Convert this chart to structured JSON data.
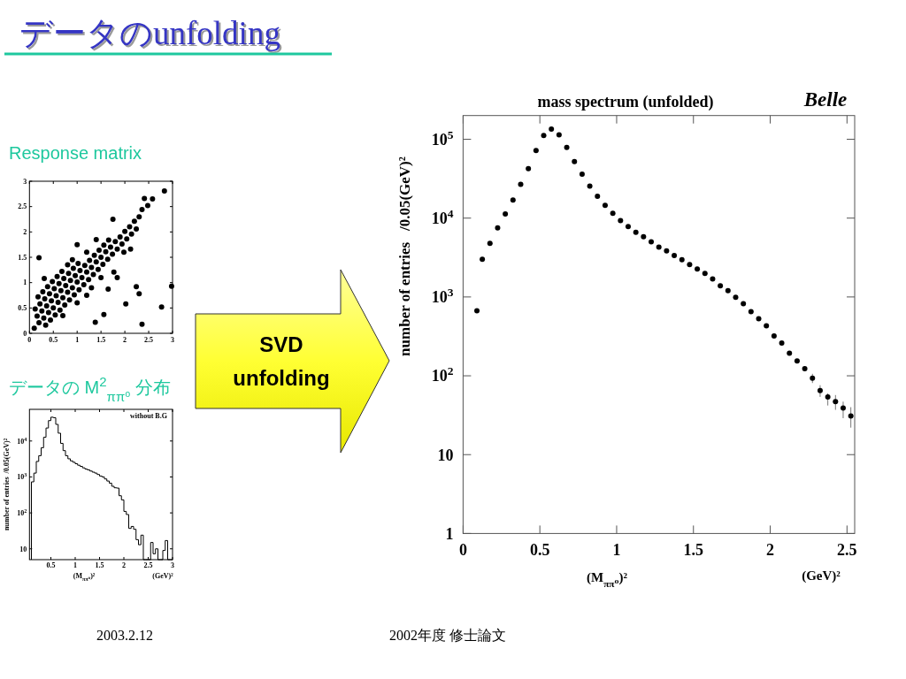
{
  "chart_data": [
    {
      "type": "other",
      "title": "データのunfolding",
      "annotations": [
        "SVD unfolding",
        "2003.2.12",
        "2002年度 修士論文"
      ]
    },
    {
      "type": "scatter",
      "title": "Response matrix",
      "x": [
        0.1,
        0.2,
        0.3,
        0.4,
        0.5,
        0.6,
        0.7,
        0.8,
        0.9,
        1.0,
        1.1,
        1.2,
        1.3,
        1.4,
        1.5,
        1.6,
        1.7,
        1.8,
        1.9,
        2.0,
        2.1,
        2.2,
        2.3,
        0.16,
        0.26,
        0.36,
        0.46,
        0.56,
        0.66,
        0.76,
        0.86,
        0.96,
        1.06,
        1.16,
        1.26,
        1.36,
        1.46,
        1.56,
        1.66,
        0.34,
        0.44,
        0.54,
        0.64,
        0.74,
        0.84,
        0.94,
        1.04,
        1.14,
        1.24,
        1.34,
        1.44,
        1.54,
        1.64,
        1.74,
        1.84,
        1.94,
        2.04,
        2.14,
        2.24,
        0.12,
        0.22,
        0.32,
        0.42,
        0.52,
        0.62,
        0.72,
        0.82,
        0.92,
        1.02,
        0.18,
        0.28,
        0.38,
        0.48,
        0.58,
        0.68,
        0.2,
        1.0,
        0.31,
        1.75,
        2.12,
        1.98,
        1.77,
        1.84,
        1.65,
        2.3,
        2.24,
        2.02,
        2.77,
        2.36,
        1.56,
        1.38,
        2.98,
        2.41,
        2.58,
        2.48,
        2.36,
        2.83,
        1.0,
        1.2,
        0.7,
        1.5,
        1.3,
        0.9,
        1.2,
        1.4,
        0.8
      ],
      "series": [
        {
          "color": "#000000",
          "values": [
            0.1,
            0.21,
            0.3,
            0.41,
            0.5,
            0.61,
            0.7,
            0.81,
            0.9,
            1.01,
            1.1,
            1.21,
            1.3,
            1.41,
            1.5,
            1.61,
            1.7,
            1.81,
            1.9,
            2.01,
            2.1,
            2.21,
            2.3,
            0.34,
            0.44,
            0.54,
            0.64,
            0.74,
            0.84,
            0.94,
            1.04,
            1.14,
            1.24,
            1.34,
            1.44,
            1.54,
            1.64,
            1.74,
            1.84,
            0.16,
            0.26,
            0.36,
            0.46,
            0.56,
            0.66,
            0.76,
            0.86,
            0.96,
            1.06,
            1.16,
            1.26,
            1.36,
            1.46,
            1.56,
            1.66,
            1.76,
            1.86,
            1.96,
            2.06,
            0.48,
            0.58,
            0.68,
            0.78,
            0.88,
            0.98,
            1.08,
            1.18,
            1.28,
            1.38,
            0.72,
            0.82,
            0.92,
            1.02,
            1.12,
            1.22,
            1.49,
            1.75,
            1.08,
            2.25,
            1.66,
            1.6,
            1.21,
            1.1,
            0.87,
            0.78,
            0.92,
            0.58,
            0.52,
            0.18,
            0.37,
            0.22,
            0.93,
            2.66,
            2.65,
            2.52,
            2.44,
            2.81,
            0.6,
            0.75,
            0.35,
            1.1,
            0.9,
            1.45,
            1.6,
            1.85,
            1.35
          ]
        }
      ],
      "xlim": [
        0,
        3
      ],
      "ylim": [
        0,
        3
      ],
      "xticks": [
        0,
        0.5,
        1,
        1.5,
        2,
        2.5,
        3
      ],
      "yticks": [
        0,
        0.5,
        1,
        1.5,
        2,
        2.5,
        3
      ],
      "marker": "circle"
    },
    {
      "type": "histogram",
      "title": "データの M$^{2}$$_{ππ⁰}$ 分布",
      "xlabel": "(M$_{ππ⁰}$)²",
      "ylabel": "number of entries  /0.05(GeV)²",
      "annotations": [
        "without B.G",
        "(GeV)²"
      ],
      "bins": [
        0.1,
        0.15,
        0.2,
        0.25,
        0.3,
        0.35,
        0.4,
        0.45,
        0.5,
        0.55,
        0.6,
        0.65,
        0.7,
        0.75,
        0.8,
        0.85,
        0.9,
        0.95,
        1.0,
        1.05,
        1.1,
        1.15,
        1.2,
        1.25,
        1.3,
        1.35,
        1.4,
        1.45,
        1.5,
        1.55,
        1.6,
        1.65,
        1.7,
        1.75,
        1.8,
        1.85,
        1.9,
        1.95,
        2.0,
        2.05,
        2.1,
        2.15,
        2.2,
        2.25,
        2.3,
        2.35,
        2.4,
        2.45,
        2.5,
        2.55,
        2.6,
        2.65,
        2.7,
        2.75,
        2.8,
        2.85,
        2.9,
        2.95,
        3.0
      ],
      "values": [
        730,
        1280,
        2700,
        3900,
        6500,
        12700,
        23000,
        37000,
        46000,
        44500,
        29000,
        16500,
        8600,
        5400,
        3900,
        3200,
        2800,
        2560,
        2330,
        2120,
        1970,
        1790,
        1660,
        1570,
        1460,
        1360,
        1280,
        1170,
        1060,
        1000,
        880,
        770,
        670,
        550,
        500,
        490,
        300,
        230,
        110,
        90,
        37,
        42,
        35,
        18,
        13,
        24,
        null,
        null,
        null,
        15,
        7.3,
        10,
        null,
        null,
        9,
        17,
        null,
        null
      ],
      "color": "#000000",
      "xlim": [
        0.06,
        3
      ],
      "ylim": [
        5,
        76000
      ],
      "xticks": [
        0.5,
        1,
        1.5,
        2,
        2.5,
        3
      ],
      "yticks": [
        10,
        {
          "value": 100,
          "label": "10$^{2}$"
        },
        {
          "value": 1000,
          "label": "10$^{3}$"
        },
        {
          "value": 10000,
          "label": "10$^{4}$"
        }
      ],
      "log": "y"
    },
    {
      "type": "scatter",
      "title": "mass spectrum (unfolded)",
      "xlabel": "(M$_{ππ⁰}$)²",
      "ylabel": "number of entries   /0.05(GeV)²",
      "annotations": [
        "Belle",
        "(GeV)²"
      ],
      "x": [
        0.09,
        0.125,
        0.175,
        0.225,
        0.275,
        0.325,
        0.375,
        0.425,
        0.475,
        0.525,
        0.575,
        0.625,
        0.675,
        0.725,
        0.775,
        0.825,
        0.875,
        0.925,
        0.975,
        1.025,
        1.075,
        1.125,
        1.175,
        1.225,
        1.275,
        1.325,
        1.375,
        1.425,
        1.475,
        1.525,
        1.575,
        1.625,
        1.675,
        1.725,
        1.775,
        1.825,
        1.875,
        1.925,
        1.975,
        2.025,
        2.075,
        2.125,
        2.175,
        2.225,
        2.275,
        2.325,
        2.375,
        2.425,
        2.475,
        2.525
      ],
      "series": [
        {
          "color": "#000000",
          "values": [
            670,
            3000,
            4800,
            7500,
            11300,
            17000,
            26800,
            42500,
            72000,
            112000,
            135000,
            114000,
            79000,
            52000,
            36000,
            25400,
            18900,
            14500,
            11500,
            9300,
            7800,
            6600,
            5800,
            5000,
            4300,
            3840,
            3360,
            2970,
            2570,
            2270,
            1990,
            1690,
            1390,
            1200,
            990,
            820,
            650,
            530,
            430,
            320,
            260,
            193,
            154,
            123,
            93,
            65,
            54,
            47,
            39,
            31
          ],
          "errors": [
            null,
            null,
            null,
            null,
            null,
            null,
            null,
            null,
            null,
            null,
            null,
            null,
            null,
            null,
            null,
            null,
            null,
            null,
            null,
            null,
            null,
            null,
            null,
            null,
            null,
            null,
            null,
            null,
            null,
            null,
            null,
            null,
            null,
            null,
            null,
            null,
            null,
            null,
            null,
            null,
            null,
            null,
            null,
            null,
            [
              81,
              106
            ],
            [
              54,
              76
            ],
            [
              42,
              60
            ],
            [
              37,
              57
            ],
            [
              29,
              47
            ],
            [
              22,
              40
            ]
          ]
        }
      ],
      "xlim": [
        0,
        2.55
      ],
      "ylim": [
        1,
        200000
      ],
      "xticks": [
        0,
        0.5,
        1,
        1.5,
        2,
        2.5
      ],
      "yticks": [
        1,
        10,
        {
          "value": 100,
          "label": "10$^{2}$"
        },
        {
          "value": 1000,
          "label": "10$^{3}$"
        },
        {
          "value": 10000,
          "label": "10$^{4}$"
        },
        {
          "value": 100000,
          "label": "10$^{5}$"
        }
      ],
      "log": "y",
      "marker": "circle"
    }
  ]
}
